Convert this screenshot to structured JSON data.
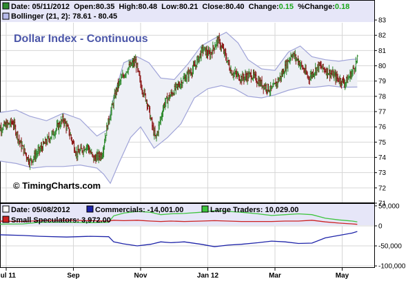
{
  "chart_data": [
    {
      "type": "candlestick",
      "title": "Dollar Index - Continuous",
      "watermark": "© TimingCharts.com",
      "header": {
        "date_label": "Date: 05/11/2012",
        "open_label": "Open:80.35",
        "high_label": "High:80.48",
        "low_label": "Low:80.21",
        "close_prefix": "Close:80.40",
        "change_prefix": "Change:",
        "change_value": "0.15",
        "pct_prefix": "%Change:",
        "pct_value": "0.18",
        "bollinger_label": "Bollinger (21, 2): 78.61 - 80.45"
      },
      "y_ticks": [
        "71",
        "72",
        "73",
        "74",
        "75",
        "76",
        "77",
        "78",
        "79",
        "80",
        "81",
        "82",
        "83"
      ],
      "ylim": [
        71,
        83.5
      ],
      "x_ticks": [
        "Jul 11",
        "Sep",
        "Nov",
        "Jan 12",
        "Mar",
        "May"
      ],
      "x_tick_months": [
        0,
        2,
        4,
        6,
        8,
        10
      ],
      "anchors": [
        [
          -0.3,
          75.8
        ],
        [
          0.2,
          76.3
        ],
        [
          0.4,
          75.0
        ],
        [
          0.7,
          73.7
        ],
        [
          1.0,
          74.5
        ],
        [
          1.4,
          75.6
        ],
        [
          1.7,
          76.5
        ],
        [
          1.9,
          75.5
        ],
        [
          2.1,
          74.2
        ],
        [
          2.4,
          74.8
        ],
        [
          2.6,
          73.9
        ],
        [
          2.85,
          74.2
        ],
        [
          3.0,
          76.0
        ],
        [
          3.3,
          78.6
        ],
        [
          3.6,
          79.8
        ],
        [
          3.85,
          80.3
        ],
        [
          4.0,
          78.8
        ],
        [
          4.2,
          77.6
        ],
        [
          4.35,
          76.0
        ],
        [
          4.45,
          75.2
        ],
        [
          4.7,
          77.5
        ],
        [
          5.0,
          78.4
        ],
        [
          5.4,
          79.4
        ],
        [
          5.6,
          79.9
        ],
        [
          5.85,
          81.1
        ],
        [
          6.05,
          80.7
        ],
        [
          6.3,
          81.7
        ],
        [
          6.5,
          80.8
        ],
        [
          6.7,
          79.6
        ],
        [
          7.0,
          79.2
        ],
        [
          7.3,
          79.4
        ],
        [
          7.6,
          78.8
        ],
        [
          7.9,
          78.4
        ],
        [
          8.2,
          79.4
        ],
        [
          8.5,
          80.8
        ],
        [
          8.7,
          80.3
        ],
        [
          9.0,
          79.2
        ],
        [
          9.3,
          80.0
        ],
        [
          9.6,
          79.6
        ],
        [
          9.9,
          79.1
        ],
        [
          10.1,
          78.9
        ],
        [
          10.3,
          79.6
        ],
        [
          10.45,
          80.4
        ]
      ],
      "bollinger_upper": [
        [
          -0.3,
          76.9
        ],
        [
          0.3,
          77.1
        ],
        [
          0.7,
          76.7
        ],
        [
          1.2,
          76.4
        ],
        [
          1.7,
          76.9
        ],
        [
          2.2,
          76.5
        ],
        [
          2.7,
          75.4
        ],
        [
          3.0,
          75.8
        ],
        [
          3.2,
          78.0
        ],
        [
          3.5,
          80.2
        ],
        [
          3.9,
          80.6
        ],
        [
          4.25,
          80.2
        ],
        [
          4.6,
          79.2
        ],
        [
          5.0,
          79.1
        ],
        [
          5.4,
          80.1
        ],
        [
          5.8,
          81.3
        ],
        [
          6.2,
          81.8
        ],
        [
          6.55,
          82.2
        ],
        [
          6.9,
          81.5
        ],
        [
          7.2,
          80.4
        ],
        [
          7.6,
          79.8
        ],
        [
          8.0,
          79.7
        ],
        [
          8.4,
          80.9
        ],
        [
          8.75,
          81.3
        ],
        [
          9.1,
          80.6
        ],
        [
          9.5,
          80.4
        ],
        [
          9.9,
          80.3
        ],
        [
          10.2,
          80.4
        ],
        [
          10.45,
          80.45
        ]
      ],
      "bollinger_lower": [
        [
          -0.3,
          73.8
        ],
        [
          0.3,
          73.6
        ],
        [
          0.8,
          73.3
        ],
        [
          1.2,
          73.4
        ],
        [
          1.7,
          73.4
        ],
        [
          2.2,
          73.5
        ],
        [
          2.7,
          73.3
        ],
        [
          2.9,
          72.9
        ],
        [
          3.1,
          72.3
        ],
        [
          3.35,
          73.6
        ],
        [
          3.7,
          75.3
        ],
        [
          4.0,
          76.0
        ],
        [
          4.4,
          74.6
        ],
        [
          4.8,
          75.3
        ],
        [
          5.2,
          76.2
        ],
        [
          5.6,
          77.9
        ],
        [
          6.0,
          78.5
        ],
        [
          6.4,
          78.7
        ],
        [
          6.8,
          78.5
        ],
        [
          7.2,
          78.0
        ],
        [
          7.6,
          77.9
        ],
        [
          8.0,
          78.1
        ],
        [
          8.4,
          78.4
        ],
        [
          8.8,
          78.6
        ],
        [
          9.2,
          78.6
        ],
        [
          9.6,
          78.7
        ],
        [
          10.0,
          78.6
        ],
        [
          10.45,
          78.61
        ]
      ]
    },
    {
      "type": "line",
      "header": {
        "date_label": "Date: 05/08/2012",
        "commercials_label": "Commercials: -14,001.00",
        "large_traders_label": "Large Traders: 10,029.00",
        "small_speculators_label": "Small Speculators: 3,972.00"
      },
      "y_ticks": [
        "50,000",
        "0",
        "-50,000",
        "-100,000"
      ],
      "y_tick_values": [
        50000,
        0,
        -50000,
        -100000
      ],
      "ylim": [
        -105000,
        55000
      ],
      "series": [
        {
          "name": "Commercials",
          "color": "#1c22a8",
          "points": [
            [
              -0.3,
              -22000
            ],
            [
              0.5,
              -24000
            ],
            [
              1.0,
              -26000
            ],
            [
              1.8,
              -28000
            ],
            [
              2.5,
              -26000
            ],
            [
              3.05,
              -27000
            ],
            [
              3.2,
              -40000
            ],
            [
              3.5,
              -45000
            ],
            [
              3.9,
              -50000
            ],
            [
              4.3,
              -46000
            ],
            [
              4.6,
              -40000
            ],
            [
              4.9,
              -42000
            ],
            [
              5.3,
              -40000
            ],
            [
              5.8,
              -46000
            ],
            [
              6.2,
              -52000
            ],
            [
              6.6,
              -48000
            ],
            [
              7.0,
              -46000
            ],
            [
              7.5,
              -42000
            ],
            [
              7.9,
              -38000
            ],
            [
              8.3,
              -40000
            ],
            [
              8.7,
              -44000
            ],
            [
              9.1,
              -43000
            ],
            [
              9.5,
              -30000
            ],
            [
              9.9,
              -24000
            ],
            [
              10.3,
              -18000
            ],
            [
              10.45,
              -14001
            ]
          ]
        },
        {
          "name": "Large Traders",
          "color": "#3ec43e",
          "points": [
            [
              -0.3,
              4000
            ],
            [
              0.5,
              5000
            ],
            [
              1.0,
              9000
            ],
            [
              1.8,
              9000
            ],
            [
              2.5,
              8000
            ],
            [
              3.05,
              9000
            ],
            [
              3.2,
              25000
            ],
            [
              3.5,
              32000
            ],
            [
              3.9,
              36000
            ],
            [
              4.3,
              34000
            ],
            [
              4.6,
              28000
            ],
            [
              4.9,
              30000
            ],
            [
              5.3,
              31000
            ],
            [
              5.8,
              34000
            ],
            [
              6.2,
              38000
            ],
            [
              6.6,
              36000
            ],
            [
              7.0,
              34000
            ],
            [
              7.5,
              30000
            ],
            [
              7.9,
              26000
            ],
            [
              8.3,
              28000
            ],
            [
              8.7,
              30000
            ],
            [
              9.1,
              28000
            ],
            [
              9.5,
              19000
            ],
            [
              9.9,
              15000
            ],
            [
              10.3,
              12000
            ],
            [
              10.45,
              10029
            ]
          ]
        },
        {
          "name": "Small Speculators",
          "color": "#cc2020",
          "points": [
            [
              -0.3,
              12000
            ],
            [
              0.5,
              11000
            ],
            [
              1.0,
              13000
            ],
            [
              1.8,
              14000
            ],
            [
              2.5,
              13000
            ],
            [
              3.05,
              12000
            ],
            [
              3.2,
              14000
            ],
            [
              3.5,
              13000
            ],
            [
              3.9,
              14000
            ],
            [
              4.3,
              12000
            ],
            [
              4.6,
              11000
            ],
            [
              4.9,
              12000
            ],
            [
              5.3,
              11000
            ],
            [
              5.8,
              12000
            ],
            [
              6.2,
              13000
            ],
            [
              6.6,
              12000
            ],
            [
              7.0,
              11000
            ],
            [
              7.5,
              11000
            ],
            [
              7.9,
              11000
            ],
            [
              8.3,
              12000
            ],
            [
              8.7,
              12000
            ],
            [
              9.1,
              14000
            ],
            [
              9.5,
              10000
            ],
            [
              9.9,
              7000
            ],
            [
              10.3,
              5000
            ],
            [
              10.45,
              3972
            ]
          ]
        }
      ]
    }
  ],
  "colors": {
    "panel_bg": "#ffffff",
    "legend_strip": "#e6e6f8",
    "band_fill": "#eef0f6",
    "band_line": "#9fa3d8",
    "bull": "#2e8a2e",
    "bear": "#8a1414",
    "title": "#4a55a8",
    "change_green": "#19a619",
    "grid": "#d6d6d6"
  }
}
